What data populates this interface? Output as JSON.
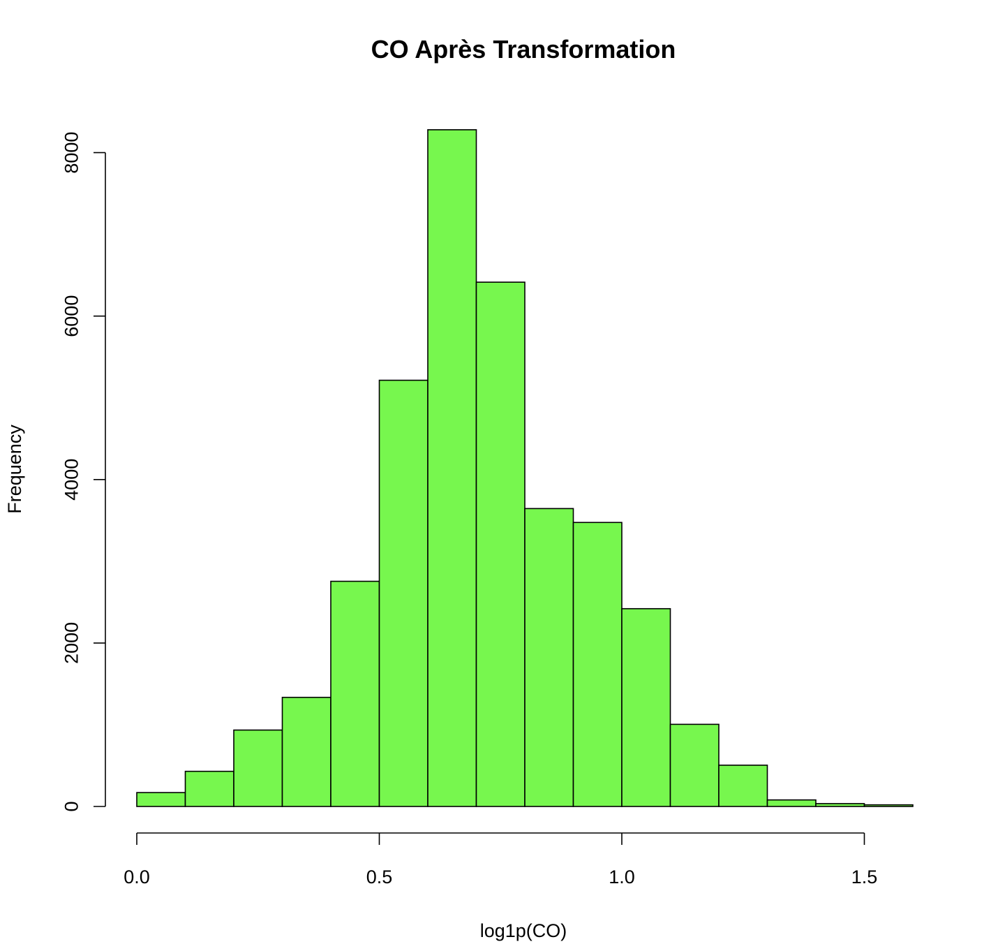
{
  "chart_data": {
    "type": "bar",
    "subtype": "histogram",
    "title": "CO Après Transformation",
    "xlabel": "log1p(CO)",
    "ylabel": "Frequency",
    "bar_color": "#77F74E",
    "edge_color": "#000000",
    "bins": [
      {
        "x0": 0.0,
        "x1": 0.1,
        "count": 170
      },
      {
        "x0": 0.1,
        "x1": 0.2,
        "count": 430
      },
      {
        "x0": 0.2,
        "x1": 0.3,
        "count": 935
      },
      {
        "x0": 0.3,
        "x1": 0.4,
        "count": 1335
      },
      {
        "x0": 0.4,
        "x1": 0.5,
        "count": 2755
      },
      {
        "x0": 0.5,
        "x1": 0.6,
        "count": 5215
      },
      {
        "x0": 0.6,
        "x1": 0.7,
        "count": 8280
      },
      {
        "x0": 0.7,
        "x1": 0.8,
        "count": 6415
      },
      {
        "x0": 0.8,
        "x1": 0.9,
        "count": 3645
      },
      {
        "x0": 0.9,
        "x1": 1.0,
        "count": 3475
      },
      {
        "x0": 1.0,
        "x1": 1.1,
        "count": 2420
      },
      {
        "x0": 1.1,
        "x1": 1.2,
        "count": 1005
      },
      {
        "x0": 1.2,
        "x1": 1.3,
        "count": 505
      },
      {
        "x0": 1.3,
        "x1": 1.4,
        "count": 80
      },
      {
        "x0": 1.4,
        "x1": 1.5,
        "count": 35
      },
      {
        "x0": 1.5,
        "x1": 1.6,
        "count": 20
      }
    ],
    "x_ticks": [
      0.0,
      0.5,
      1.0,
      1.5
    ],
    "x_tick_labels": [
      "0.0",
      "0.5",
      "1.0",
      "1.5"
    ],
    "y_ticks": [
      0,
      2000,
      4000,
      6000,
      8000
    ],
    "y_tick_labels": [
      "0",
      "2000",
      "4000",
      "6000",
      "8000"
    ],
    "xlim": [
      0.0,
      1.6
    ],
    "ylim": [
      0,
      8300
    ],
    "grid": false,
    "legend": "none"
  }
}
